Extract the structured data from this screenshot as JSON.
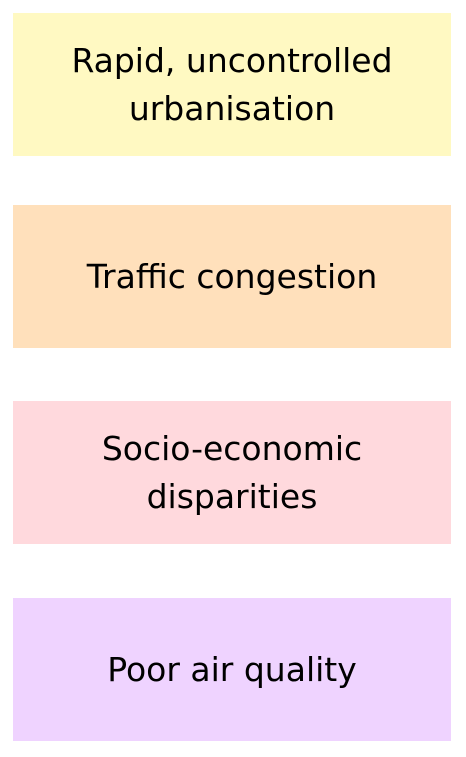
{
  "boxes": [
    {
      "label": "Rapid, uncontrolled urbanisation",
      "color": "#FFF9C2"
    },
    {
      "label": "Traffic congestion",
      "color": "#FFE0BB"
    },
    {
      "label": "Socio-economic disparities",
      "color": "#FFD9DD"
    },
    {
      "label": "Poor air quality",
      "color": "#EFD3FF"
    }
  ]
}
